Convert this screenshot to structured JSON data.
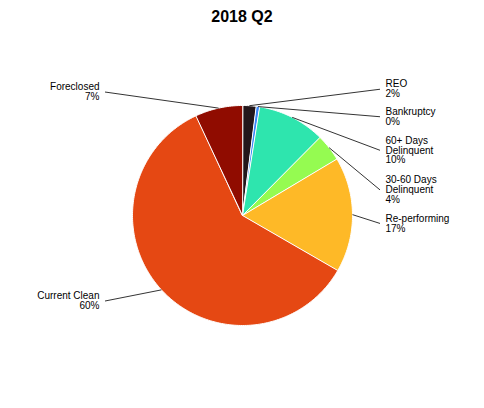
{
  "chart_data": {
    "type": "pie",
    "title": "2018 Q2",
    "categories": [
      "REO",
      "Bankruptcy",
      "60+ Days\nDelinquent",
      "30-60 Days\nDelinquent",
      "Re-performing",
      "Current Clean",
      "Foreclosed"
    ],
    "values": [
      2,
      0.5,
      10,
      4,
      17,
      60,
      7
    ],
    "value_labels": [
      "2%",
      "0%",
      "10%",
      "4%",
      "17%",
      "60%",
      "7%"
    ]
  }
}
